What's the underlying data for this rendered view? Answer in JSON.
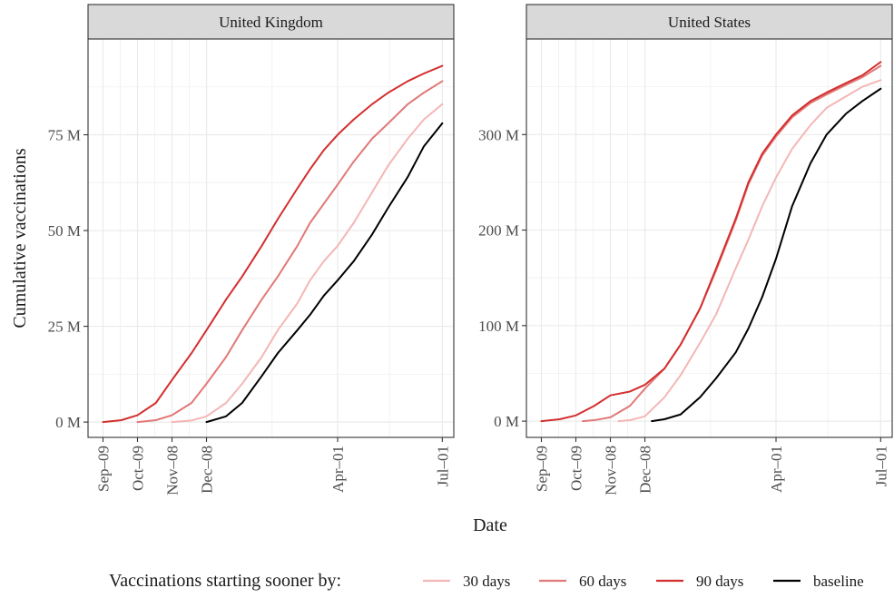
{
  "chart_data": {
    "type": "line",
    "xlabel": "Date",
    "ylabel": "Cumulative vaccinations",
    "legend": {
      "title": "Vaccinations starting sooner by:",
      "position": "bottom",
      "entries": [
        "30 days",
        "60 days",
        "90 days",
        "baseline"
      ]
    },
    "colors": {
      "30 days": "#f4b6b6",
      "60 days": "#e27878",
      "90 days": "#d32f2f",
      "baseline": "#000000"
    },
    "x_ticks": [
      {
        "label": "Sep–09",
        "date": "2020-09-09"
      },
      {
        "label": "Oct–09",
        "date": "2020-10-09"
      },
      {
        "label": "Nov–08",
        "date": "2020-11-08"
      },
      {
        "label": "Dec–08",
        "date": "2020-12-08"
      },
      {
        "label": "Apr–01",
        "date": "2021-04-01"
      },
      {
        "label": "Jul–01",
        "date": "2021-07-01"
      }
    ],
    "xlim": [
      "2020-08-27",
      "2021-07-11"
    ],
    "grid": true,
    "panels": [
      {
        "title": "United Kingdom",
        "ylim": [
          -4,
          100
        ],
        "y_ticks": [
          {
            "value": 0,
            "label": "0 M"
          },
          {
            "value": 25,
            "label": "25 M"
          },
          {
            "value": 50,
            "label": "50 M"
          },
          {
            "value": 75,
            "label": "75 M"
          }
        ],
        "series": [
          {
            "name": "90 days",
            "points": [
              [
                "2020-09-09",
                0
              ],
              [
                "2020-09-25",
                0.5
              ],
              [
                "2020-10-09",
                1.8
              ],
              [
                "2020-10-25",
                5
              ],
              [
                "2020-11-08",
                11
              ],
              [
                "2020-11-25",
                18
              ],
              [
                "2020-12-08",
                24
              ],
              [
                "2020-12-25",
                32
              ],
              [
                "2021-01-08",
                38
              ],
              [
                "2021-01-25",
                46
              ],
              [
                "2021-02-08",
                53
              ],
              [
                "2021-02-25",
                61
              ],
              [
                "2021-03-08",
                66
              ],
              [
                "2021-03-20",
                71
              ],
              [
                "2021-04-01",
                75
              ],
              [
                "2021-04-15",
                79
              ],
              [
                "2021-05-01",
                83
              ],
              [
                "2021-05-15",
                86
              ],
              [
                "2021-06-01",
                89
              ],
              [
                "2021-06-15",
                91
              ],
              [
                "2021-07-01",
                93
              ]
            ]
          },
          {
            "name": "60 days",
            "points": [
              [
                "2020-10-09",
                0
              ],
              [
                "2020-10-25",
                0.5
              ],
              [
                "2020-11-08",
                1.8
              ],
              [
                "2020-11-25",
                5
              ],
              [
                "2020-12-08",
                10
              ],
              [
                "2020-12-25",
                17
              ],
              [
                "2021-01-08",
                24
              ],
              [
                "2021-01-25",
                32
              ],
              [
                "2021-02-08",
                38
              ],
              [
                "2021-02-25",
                46
              ],
              [
                "2021-03-08",
                52
              ],
              [
                "2021-03-20",
                57
              ],
              [
                "2021-04-01",
                62
              ],
              [
                "2021-04-15",
                68
              ],
              [
                "2021-05-01",
                74
              ],
              [
                "2021-05-15",
                78
              ],
              [
                "2021-06-01",
                83
              ],
              [
                "2021-06-15",
                86
              ],
              [
                "2021-07-01",
                89
              ]
            ]
          },
          {
            "name": "30 days",
            "points": [
              [
                "2020-11-08",
                0
              ],
              [
                "2020-11-25",
                0.4
              ],
              [
                "2020-12-08",
                1.5
              ],
              [
                "2020-12-25",
                5
              ],
              [
                "2021-01-08",
                10
              ],
              [
                "2021-01-25",
                17
              ],
              [
                "2021-02-08",
                24
              ],
              [
                "2021-02-25",
                31
              ],
              [
                "2021-03-08",
                37
              ],
              [
                "2021-03-20",
                42
              ],
              [
                "2021-04-01",
                46
              ],
              [
                "2021-04-15",
                52
              ],
              [
                "2021-05-01",
                60
              ],
              [
                "2021-05-15",
                67
              ],
              [
                "2021-06-01",
                74
              ],
              [
                "2021-06-15",
                79
              ],
              [
                "2021-07-01",
                83
              ]
            ]
          },
          {
            "name": "baseline",
            "points": [
              [
                "2020-12-08",
                0
              ],
              [
                "2020-12-25",
                1.5
              ],
              [
                "2021-01-08",
                5
              ],
              [
                "2021-01-25",
                12
              ],
              [
                "2021-02-08",
                18
              ],
              [
                "2021-02-25",
                24
              ],
              [
                "2021-03-08",
                28
              ],
              [
                "2021-03-20",
                33
              ],
              [
                "2021-04-01",
                37
              ],
              [
                "2021-04-15",
                42
              ],
              [
                "2021-05-01",
                49
              ],
              [
                "2021-05-15",
                56
              ],
              [
                "2021-06-01",
                64
              ],
              [
                "2021-06-15",
                72
              ],
              [
                "2021-07-01",
                78
              ]
            ]
          }
        ]
      },
      {
        "title": "United States",
        "ylim": [
          -17,
          400
        ],
        "y_ticks": [
          {
            "value": 0,
            "label": "0 M"
          },
          {
            "value": 100,
            "label": "100 M"
          },
          {
            "value": 200,
            "label": "200 M"
          },
          {
            "value": 300,
            "label": "300 M"
          }
        ],
        "series": [
          {
            "name": "baseline",
            "points": [
              [
                "2020-12-14",
                0
              ],
              [
                "2020-12-25",
                2
              ],
              [
                "2021-01-08",
                7
              ],
              [
                "2021-01-25",
                25
              ],
              [
                "2021-02-08",
                45
              ],
              [
                "2021-02-25",
                72
              ],
              [
                "2021-03-08",
                97
              ],
              [
                "2021-03-20",
                130
              ],
              [
                "2021-04-01",
                170
              ],
              [
                "2021-04-15",
                225
              ],
              [
                "2021-05-01",
                270
              ],
              [
                "2021-05-15",
                300
              ],
              [
                "2021-06-01",
                322
              ],
              [
                "2021-06-15",
                335
              ],
              [
                "2021-07-01",
                348
              ]
            ]
          },
          {
            "name": "30 days",
            "points": [
              [
                "2020-11-15",
                0
              ],
              [
                "2020-11-25",
                1
              ],
              [
                "2020-12-08",
                5
              ],
              [
                "2020-12-25",
                25
              ],
              [
                "2021-01-08",
                48
              ],
              [
                "2021-01-25",
                82
              ],
              [
                "2021-02-08",
                112
              ],
              [
                "2021-02-25",
                160
              ],
              [
                "2021-03-08",
                190
              ],
              [
                "2021-03-20",
                225
              ],
              [
                "2021-04-01",
                255
              ],
              [
                "2021-04-15",
                285
              ],
              [
                "2021-05-01",
                310
              ],
              [
                "2021-05-15",
                328
              ],
              [
                "2021-06-01",
                340
              ],
              [
                "2021-06-15",
                350
              ],
              [
                "2021-07-01",
                357
              ]
            ]
          },
          {
            "name": "60 days",
            "points": [
              [
                "2020-10-15",
                0
              ],
              [
                "2020-10-25",
                1
              ],
              [
                "2020-11-08",
                4
              ],
              [
                "2020-11-25",
                16
              ],
              [
                "2020-12-08",
                34
              ],
              [
                "2020-12-25",
                55
              ],
              [
                "2021-01-08",
                80
              ],
              [
                "2021-01-25",
                118
              ],
              [
                "2021-02-08",
                158
              ],
              [
                "2021-02-25",
                210
              ],
              [
                "2021-03-08",
                248
              ],
              [
                "2021-03-20",
                278
              ],
              [
                "2021-04-01",
                298
              ],
              [
                "2021-04-15",
                318
              ],
              [
                "2021-05-01",
                333
              ],
              [
                "2021-05-15",
                342
              ],
              [
                "2021-06-01",
                352
              ],
              [
                "2021-06-15",
                360
              ],
              [
                "2021-07-01",
                372
              ]
            ]
          },
          {
            "name": "90 days",
            "points": [
              [
                "2020-09-09",
                0
              ],
              [
                "2020-09-25",
                2
              ],
              [
                "2020-10-09",
                6
              ],
              [
                "2020-10-25",
                16
              ],
              [
                "2020-11-08",
                27
              ],
              [
                "2020-11-25",
                31
              ],
              [
                "2020-12-08",
                38
              ],
              [
                "2020-12-25",
                55
              ],
              [
                "2021-01-08",
                80
              ],
              [
                "2021-01-25",
                118
              ],
              [
                "2021-02-08",
                160
              ],
              [
                "2021-02-25",
                212
              ],
              [
                "2021-03-08",
                250
              ],
              [
                "2021-03-20",
                280
              ],
              [
                "2021-04-01",
                300
              ],
              [
                "2021-04-15",
                320
              ],
              [
                "2021-05-01",
                335
              ],
              [
                "2021-05-15",
                344
              ],
              [
                "2021-06-01",
                354
              ],
              [
                "2021-06-15",
                362
              ],
              [
                "2021-07-01",
                376
              ]
            ]
          }
        ]
      }
    ]
  }
}
